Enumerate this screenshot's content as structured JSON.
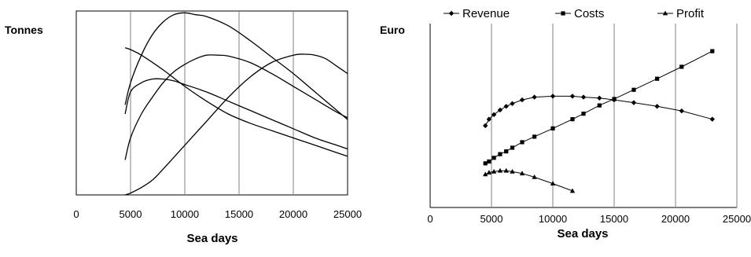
{
  "chart_data": [
    {
      "type": "line",
      "title": "",
      "xlabel": "Sea days",
      "ylabel": "Tonnes",
      "xlim": [
        0,
        25000
      ],
      "xticks": [
        "0",
        "5000",
        "10000",
        "15000",
        "20000",
        "25000"
      ],
      "yaxis_ticks_shown": false,
      "grid": "vertical",
      "legend": "none",
      "series": [
        {
          "x": [
            4500,
            5000,
            6000,
            7000,
            8000,
            9000,
            10000,
            11000,
            12000,
            14000,
            16000,
            18000,
            20000,
            22000,
            24000,
            25000
          ],
          "y": [
            0.49,
            0.61,
            0.76,
            0.87,
            0.94,
            0.98,
            0.99,
            0.98,
            0.97,
            0.92,
            0.84,
            0.75,
            0.66,
            0.56,
            0.46,
            0.41
          ]
        },
        {
          "x": [
            4500,
            5000,
            6000,
            7000,
            8000,
            9000,
            10000,
            11000,
            12000,
            13000,
            14000,
            16000,
            18000,
            20000,
            22000,
            24000,
            25000
          ],
          "y": [
            0.19,
            0.31,
            0.44,
            0.53,
            0.61,
            0.67,
            0.71,
            0.74,
            0.76,
            0.76,
            0.755,
            0.72,
            0.66,
            0.59,
            0.52,
            0.45,
            0.42
          ]
        },
        {
          "x": [
            4500,
            5000,
            6000,
            7000,
            8000,
            9000,
            10000,
            12000,
            14000,
            16000,
            18000,
            20000,
            22000,
            24000,
            25000
          ],
          "y": [
            0.44,
            0.56,
            0.61,
            0.63,
            0.63,
            0.62,
            0.6,
            0.56,
            0.51,
            0.46,
            0.41,
            0.36,
            0.31,
            0.27,
            0.25
          ]
        },
        {
          "x": [
            4500,
            5000,
            6000,
            8000,
            10000,
            12000,
            14000,
            16000,
            18000,
            20000,
            22000,
            24000,
            25000
          ],
          "y": [
            0.8,
            0.79,
            0.76,
            0.68,
            0.59,
            0.51,
            0.44,
            0.39,
            0.35,
            0.31,
            0.27,
            0.23,
            0.21
          ]
        },
        {
          "x": [
            4500,
            5000,
            6000,
            7000,
            8000,
            10000,
            12000,
            14000,
            16000,
            18000,
            20000,
            21000,
            22000,
            23000,
            24000,
            25000
          ],
          "y": [
            0.0,
            0.01,
            0.04,
            0.08,
            0.14,
            0.27,
            0.4,
            0.53,
            0.64,
            0.72,
            0.76,
            0.765,
            0.76,
            0.74,
            0.7,
            0.66
          ]
        }
      ]
    },
    {
      "type": "line",
      "title": "",
      "xlabel": "Sea days",
      "ylabel": "Euro",
      "xlim": [
        0,
        25000
      ],
      "xticks": [
        "0",
        "5000",
        "10000",
        "15000",
        "20000",
        "25000"
      ],
      "yaxis_ticks_shown": false,
      "grid": "vertical",
      "legend": "top",
      "series": [
        {
          "name": "Revenue",
          "marker": "diamond",
          "x": [
            4500,
            4800,
            5200,
            5700,
            6200,
            6700,
            7500,
            8500,
            10000,
            11600,
            12500,
            13800,
            15000,
            16600,
            18500,
            20500,
            23000
          ],
          "y": [
            0.445,
            0.48,
            0.505,
            0.53,
            0.55,
            0.565,
            0.585,
            0.6,
            0.605,
            0.605,
            0.6,
            0.595,
            0.585,
            0.57,
            0.55,
            0.525,
            0.48
          ]
        },
        {
          "name": "Costs",
          "marker": "square",
          "x": [
            4500,
            4800,
            5200,
            5700,
            6200,
            6700,
            7500,
            8500,
            10000,
            11600,
            12500,
            13800,
            15000,
            16600,
            18500,
            20500,
            23000
          ],
          "y": [
            0.24,
            0.25,
            0.27,
            0.29,
            0.305,
            0.325,
            0.355,
            0.385,
            0.43,
            0.48,
            0.51,
            0.555,
            0.59,
            0.64,
            0.7,
            0.765,
            0.85
          ]
        },
        {
          "name": "Profit",
          "marker": "triangle",
          "x": [
            4500,
            4800,
            5200,
            5700,
            6200,
            6700,
            7500,
            8500,
            10000,
            11600
          ],
          "y": [
            0.18,
            0.19,
            0.195,
            0.2,
            0.2,
            0.195,
            0.185,
            0.165,
            0.13,
            0.09
          ]
        }
      ]
    }
  ]
}
